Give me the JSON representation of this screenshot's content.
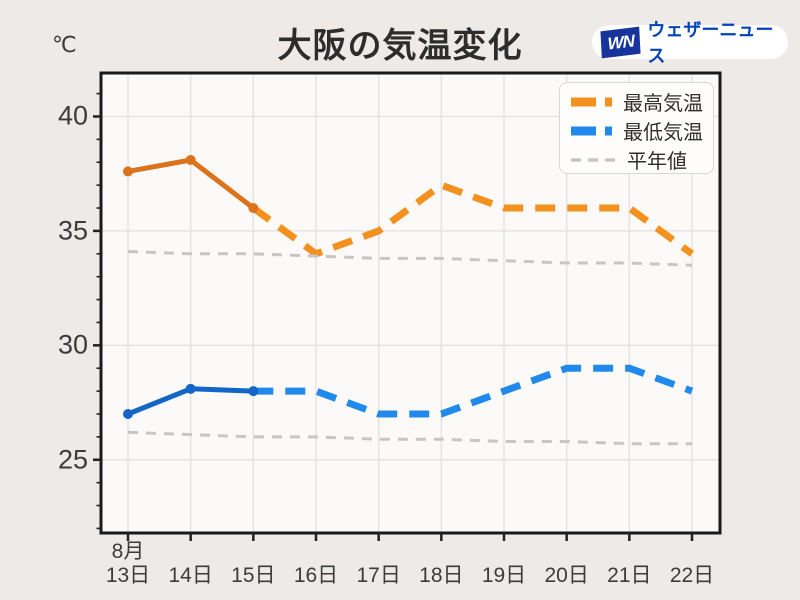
{
  "header": {
    "unit_label": "℃",
    "title": "大阪の気温変化",
    "brand": {
      "mark": "WN",
      "name": "ウェザーニュース"
    }
  },
  "legend": {
    "items": [
      {
        "label": "最高気温",
        "style": "thick-dash",
        "color": "#f4911e"
      },
      {
        "label": "最低気温",
        "style": "thick-dash",
        "color": "#2189ec"
      },
      {
        "label": "平年値",
        "style": "thin-dash",
        "color": "#c6c6c6"
      }
    ]
  },
  "colors": {
    "canvas_bg": "#edeae7",
    "plot_bg": "#fcfaf9",
    "grid": "#e3e0de",
    "border": "#1a1a1a",
    "tick": "#222222",
    "max_solid": "#db731c",
    "max_dash": "#f4911e",
    "min_solid": "#1465c8",
    "min_dash": "#2189ec",
    "normal": "#c6c6c6",
    "brand_blue": "#16349c",
    "brand_text": "#0143b8"
  },
  "chart_data": {
    "type": "line",
    "title": "大阪の気温変化",
    "ylabel": "℃",
    "x_month_label": "8月",
    "categories": [
      "13日",
      "14日",
      "15日",
      "16日",
      "17日",
      "18日",
      "19日",
      "20日",
      "21日",
      "22日"
    ],
    "y_ticks": [
      25,
      30,
      35,
      40
    ],
    "y_minor_tick_step": 1,
    "ylim": [
      21.8,
      41.9
    ],
    "grid": true,
    "legend_position": "top-right",
    "observed_until_index": 2,
    "marker_indices": [
      0,
      1,
      2
    ],
    "series": [
      {
        "name": "最高気温",
        "role": "max",
        "values": [
          37.6,
          38.1,
          36,
          34,
          35,
          37,
          36,
          36,
          36,
          34
        ]
      },
      {
        "name": "最低気温",
        "role": "min",
        "values": [
          27,
          28.1,
          28,
          28,
          27,
          27,
          28,
          29,
          29,
          28
        ]
      },
      {
        "name": "平年値(最高)",
        "role": "normal_max",
        "values": [
          34.1,
          34.0,
          34.0,
          33.9,
          33.8,
          33.8,
          33.7,
          33.6,
          33.6,
          33.5
        ]
      },
      {
        "name": "平年値(最低)",
        "role": "normal_min",
        "values": [
          26.2,
          26.1,
          26.0,
          26.0,
          25.9,
          25.9,
          25.8,
          25.8,
          25.7,
          25.7
        ]
      }
    ]
  }
}
